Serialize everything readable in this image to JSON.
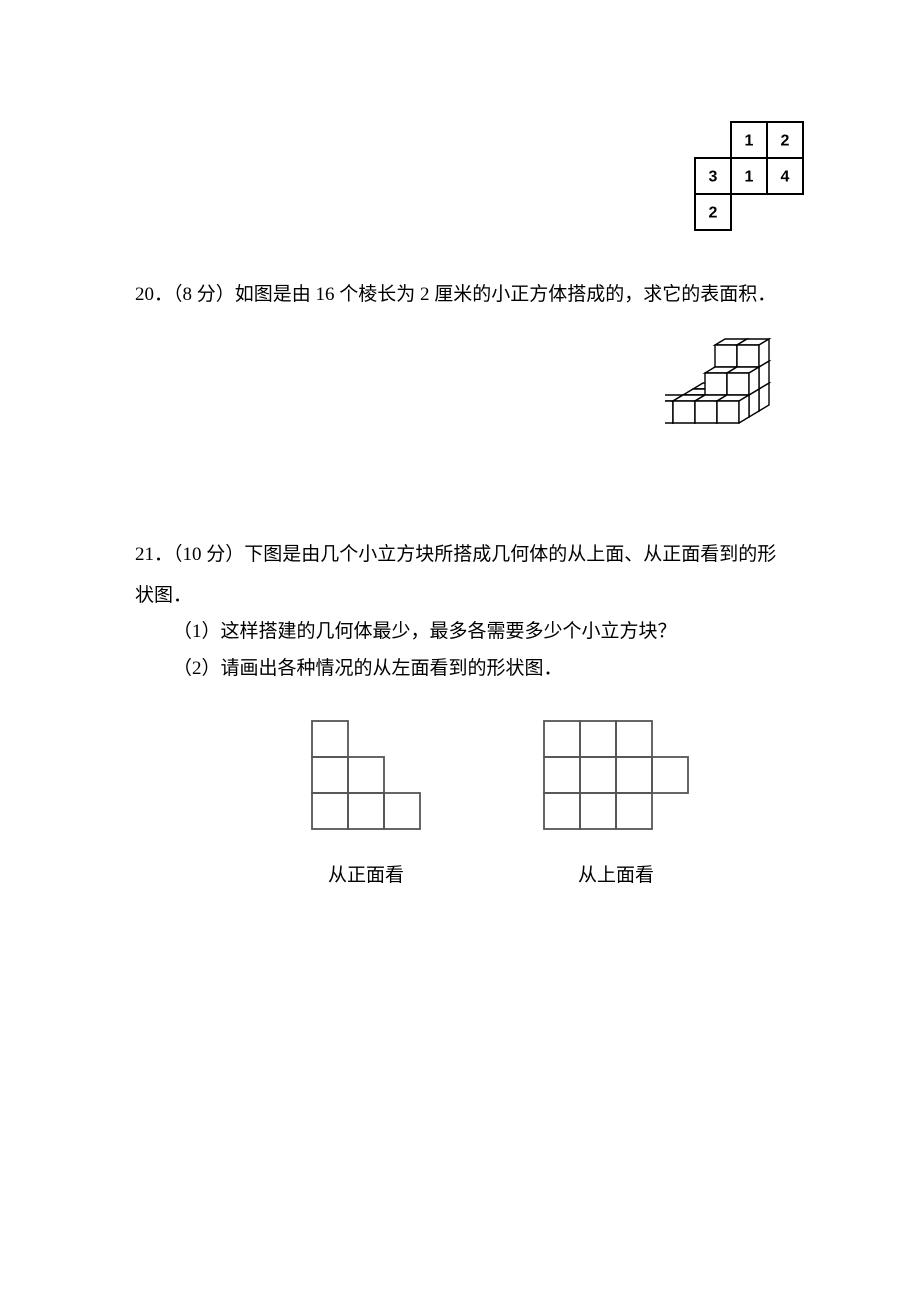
{
  "q19_grid": {
    "cells": [
      {
        "r": 0,
        "c": 1,
        "v": "1"
      },
      {
        "r": 0,
        "c": 2,
        "v": "2"
      },
      {
        "r": 1,
        "c": 0,
        "v": "3"
      },
      {
        "r": 1,
        "c": 1,
        "v": "1"
      },
      {
        "r": 1,
        "c": 2,
        "v": "4"
      },
      {
        "r": 2,
        "c": 0,
        "v": "2"
      }
    ],
    "cell_size": 36,
    "stroke": "#000000"
  },
  "q20": {
    "number": "20．",
    "points": "（8 分）",
    "text": "如图是由 16 个棱长为 2 厘米的小正方体搭成的，求它的表面积．",
    "figure": {
      "stroke": "#000000"
    }
  },
  "q21": {
    "number": "21．",
    "points": "（10 分）",
    "text_line1": "下图是由几个小立方块所搭成几何体的从上面、从正面看到的形",
    "text_line2": "状图．",
    "sub1": "（1）这样搭建的几何体最少，最多各需要多少个小立方块？",
    "sub2": "（2）请画出各种情况的从左面看到的形状图．",
    "front_view": {
      "label": "从正面看",
      "cells": [
        {
          "r": 0,
          "c": 0
        },
        {
          "r": 1,
          "c": 0
        },
        {
          "r": 1,
          "c": 1
        },
        {
          "r": 2,
          "c": 0
        },
        {
          "r": 2,
          "c": 1
        },
        {
          "r": 2,
          "c": 2
        }
      ],
      "cell_size": 36,
      "stroke": "#555555"
    },
    "top_view": {
      "label": "从上面看",
      "cells": [
        {
          "r": 0,
          "c": 0
        },
        {
          "r": 0,
          "c": 1
        },
        {
          "r": 0,
          "c": 2
        },
        {
          "r": 1,
          "c": 0
        },
        {
          "r": 1,
          "c": 1
        },
        {
          "r": 1,
          "c": 2
        },
        {
          "r": 1,
          "c": 3
        },
        {
          "r": 2,
          "c": 0
        },
        {
          "r": 2,
          "c": 1
        },
        {
          "r": 2,
          "c": 2
        }
      ],
      "cell_size": 36,
      "stroke": "#555555"
    }
  }
}
